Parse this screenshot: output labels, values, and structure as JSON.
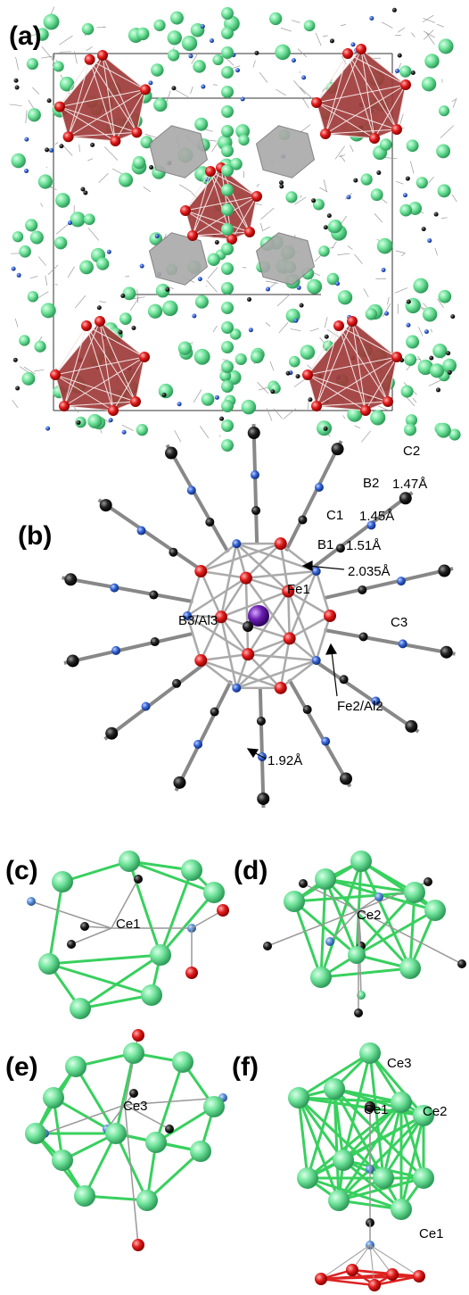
{
  "panels": [
    {
      "label": "(a)"
    },
    {
      "label": "(b)",
      "annotations": [
        "C2",
        "B2",
        "1.47Å",
        "C1",
        "1.45Å",
        "B1",
        "1.51Å",
        "2.035Å",
        "Fe1",
        "C3",
        "B3/Al3",
        "Fe2/Al2",
        "1.92Å"
      ]
    },
    {
      "label": "(c)",
      "annotations": [
        "Ce1"
      ]
    },
    {
      "label": "(d)",
      "annotations": [
        "Ce2"
      ]
    },
    {
      "label": "(e)",
      "annotations": [
        "Ce3"
      ]
    },
    {
      "label": "(f)",
      "annotations": [
        "Ce3",
        "Ce1",
        "Ce2",
        "Ce1"
      ]
    }
  ]
}
